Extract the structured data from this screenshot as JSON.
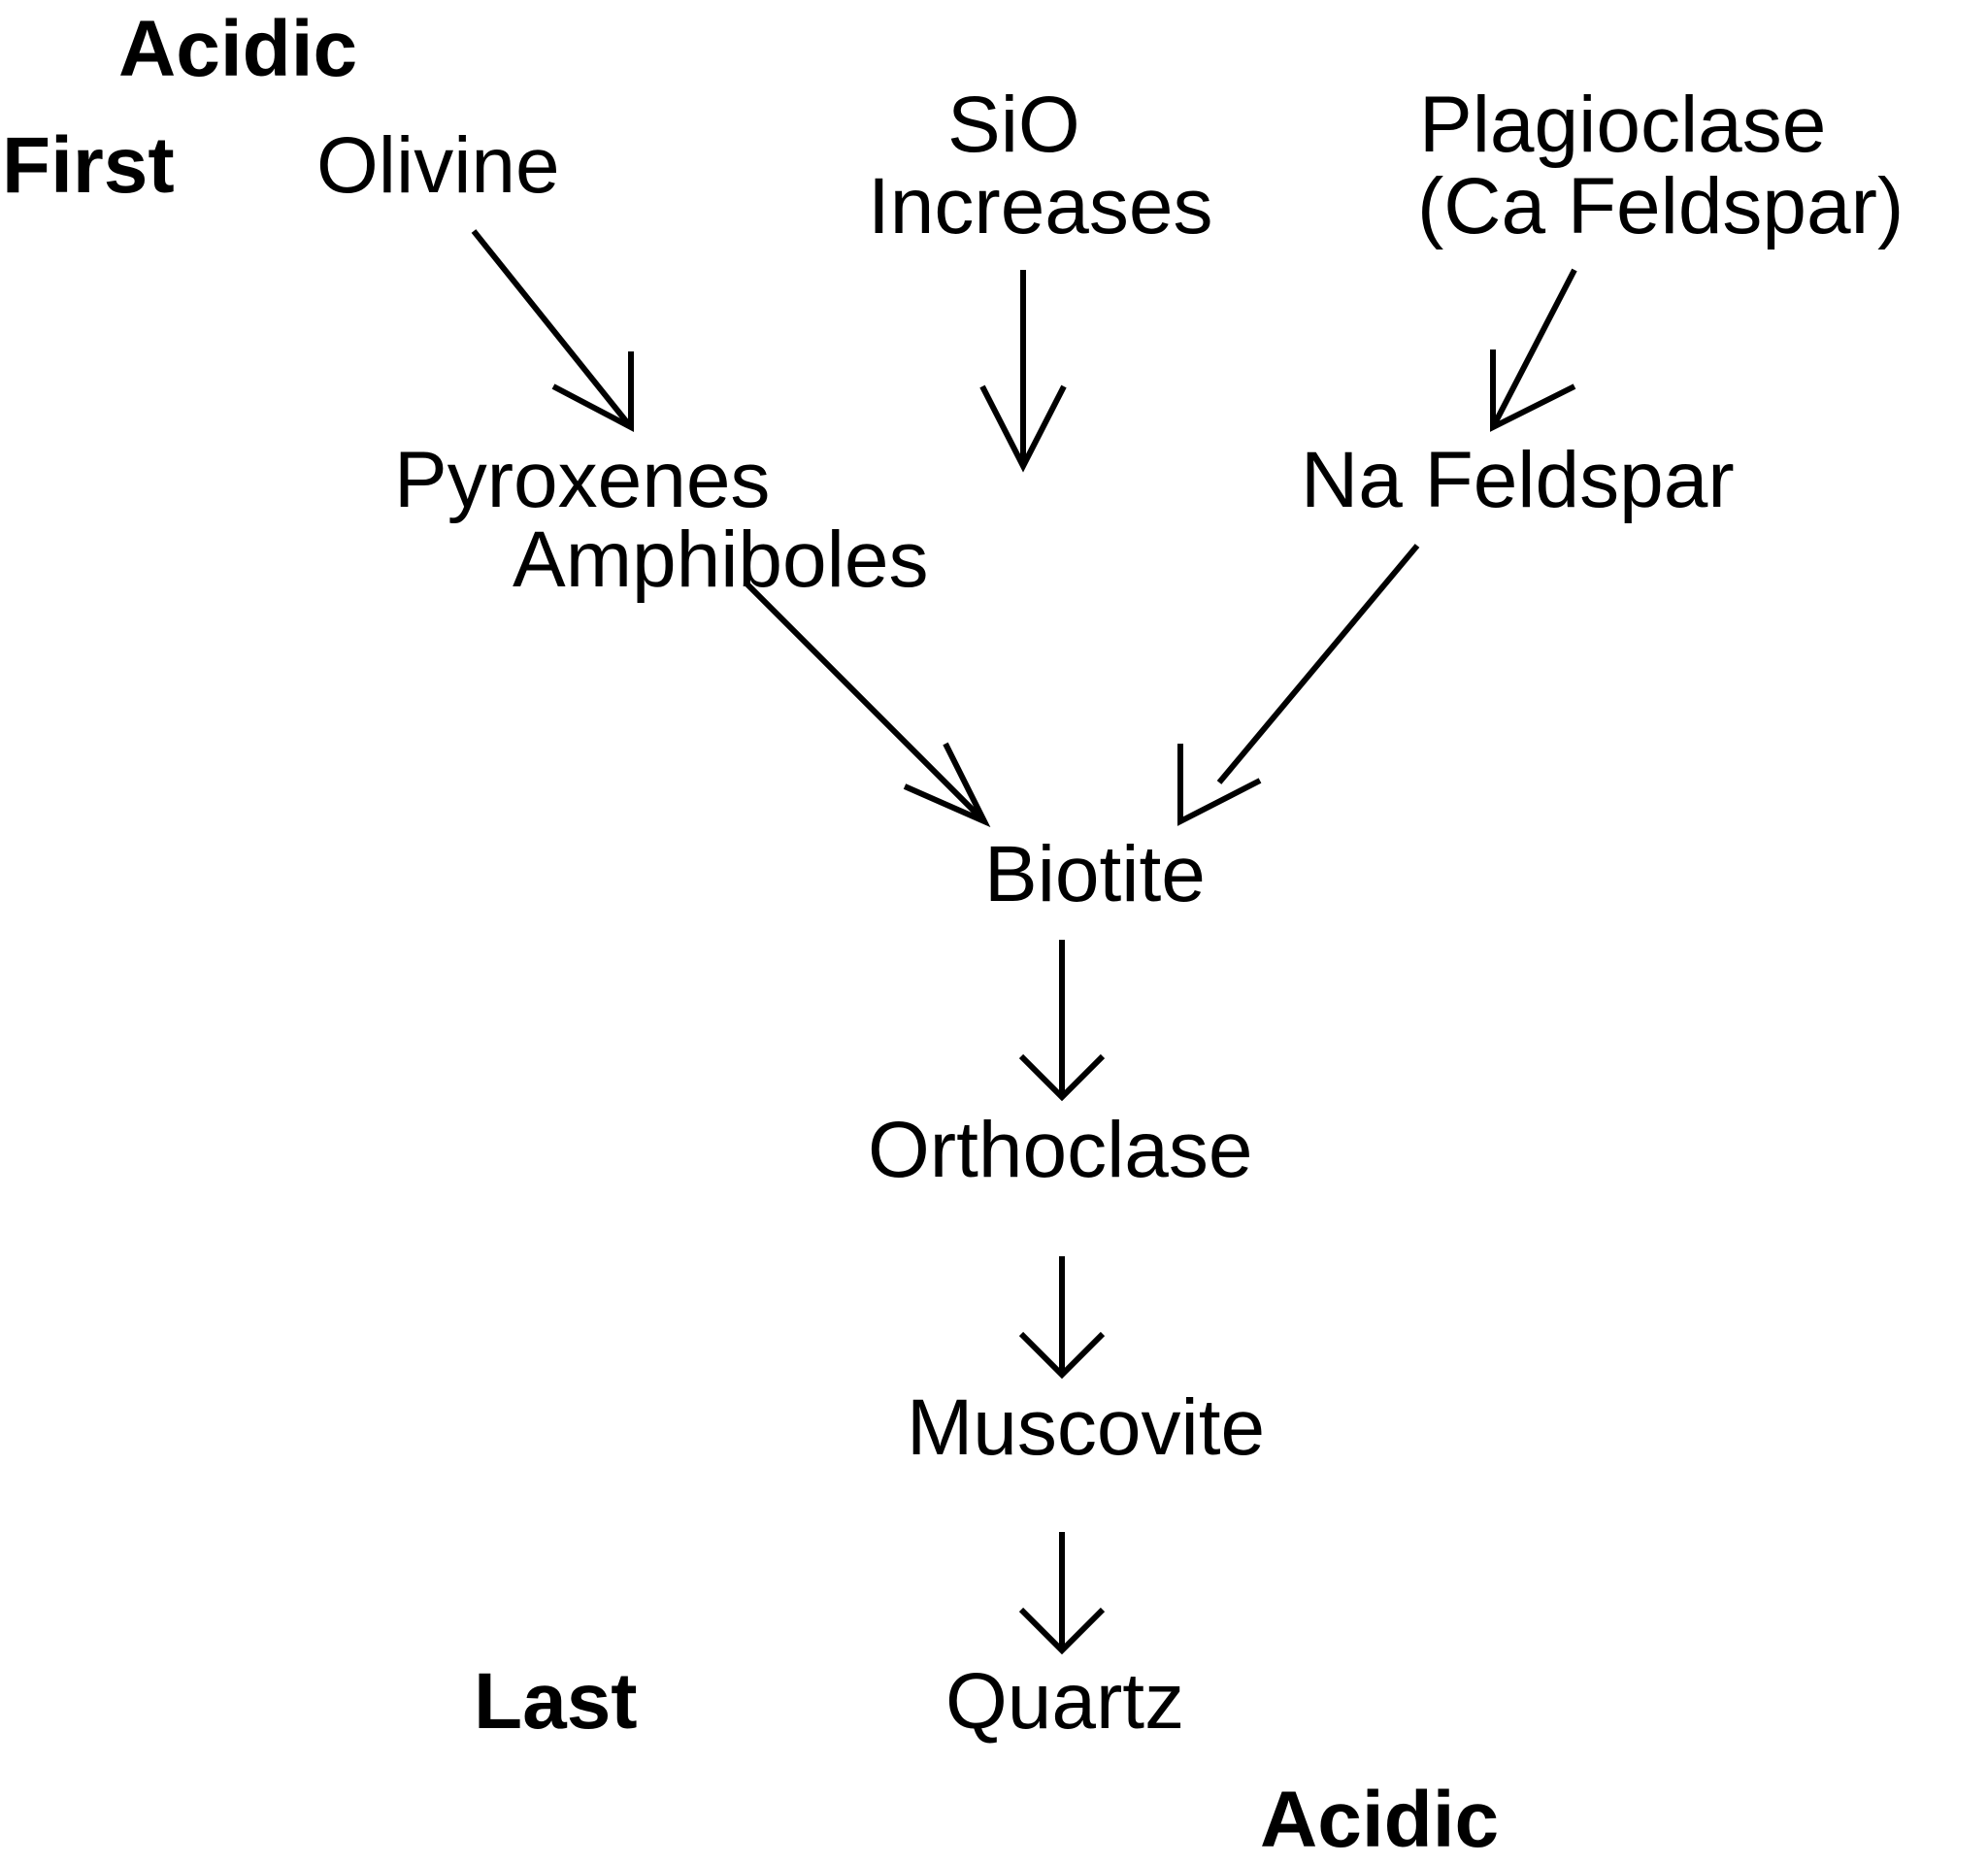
{
  "labels": {
    "acidic_top": "Acidic",
    "first": "First",
    "olivine": "Olivine",
    "sio_line1": "SiO",
    "sio_line2": "Increases",
    "plagioclase_line1": "Plagioclase",
    "plagioclase_line2": "(Ca Feldspar)",
    "pyroxenes": "Pyroxenes",
    "amphiboles": "Amphiboles",
    "na_feldspar": "Na Feldspar",
    "biotite": "Biotite",
    "orthoclase": "Orthoclase",
    "muscovite": "Muscovite",
    "last": "Last",
    "quartz": "Quartz",
    "acidic_bottom": "Acidic"
  },
  "colors": {
    "ink": "#000000",
    "background": "#ffffff"
  }
}
